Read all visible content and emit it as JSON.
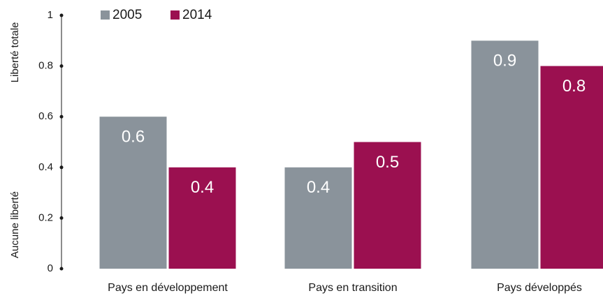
{
  "chart_data": {
    "type": "bar",
    "axis_labels": {
      "top": "Liberté totale",
      "bottom": "Aucune liberté"
    },
    "categories": [
      "Pays en développement",
      "Pays en transition",
      "Pays développés"
    ],
    "series": [
      {
        "name": "2005",
        "color": "#8a939b",
        "values": [
          0.6,
          0.4,
          0.9
        ]
      },
      {
        "name": "2014",
        "color": "#9b1050",
        "values": [
          0.4,
          0.5,
          0.8
        ]
      }
    ],
    "ylim": [
      0,
      1
    ],
    "yticks": [
      0,
      0.2,
      0.4,
      0.6,
      0.8,
      1
    ],
    "legend": "top-left"
  }
}
